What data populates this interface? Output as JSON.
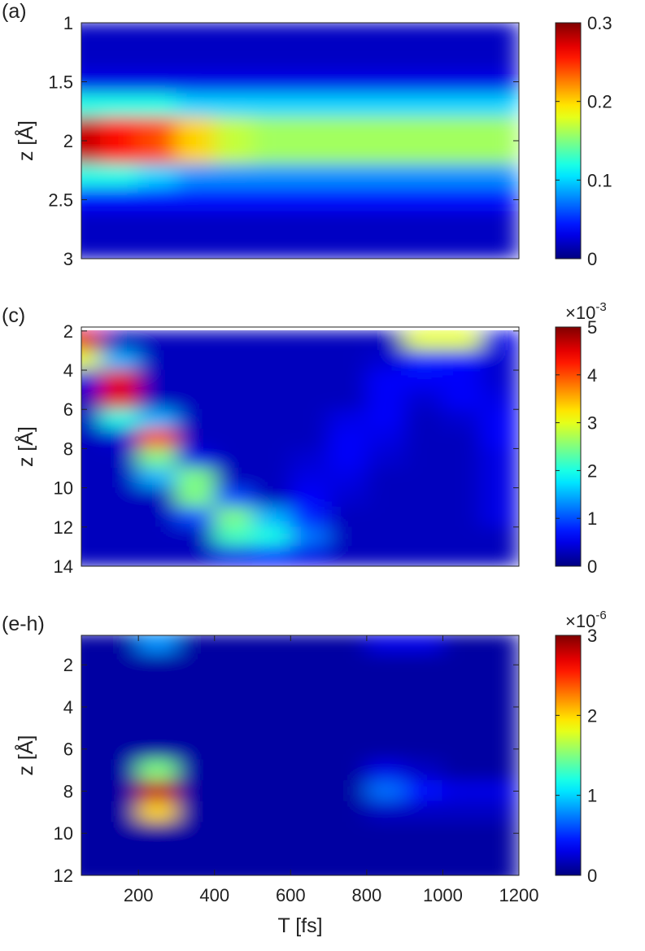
{
  "chart_data": [
    {
      "type": "heatmap",
      "title": "(a)",
      "ylabel": "z [Å]",
      "yreverse": true,
      "xlim": [
        50,
        1200
      ],
      "ylim": [
        1,
        3
      ],
      "yticks": [
        1,
        1.5,
        2,
        2.5,
        3
      ],
      "x": [
        50,
        150,
        250,
        350,
        450,
        550,
        650,
        750,
        850,
        950,
        1050,
        1150
      ],
      "y": [
        1.1,
        1.3,
        1.5,
        1.7,
        1.9,
        2.1,
        2.3,
        2.5,
        2.7,
        2.9
      ],
      "z": [
        [
          0.02,
          0.02,
          0.02,
          0.02,
          0.02,
          0.02,
          0.02,
          0.02,
          0.02,
          0.02,
          0.02,
          0.02
        ],
        [
          0.02,
          0.02,
          0.02,
          0.02,
          0.02,
          0.02,
          0.02,
          0.02,
          0.02,
          0.02,
          0.02,
          0.02
        ],
        [
          0.03,
          0.03,
          0.03,
          0.03,
          0.03,
          0.03,
          0.03,
          0.03,
          0.03,
          0.03,
          0.03,
          0.03
        ],
        [
          0.12,
          0.12,
          0.12,
          0.1,
          0.1,
          0.1,
          0.1,
          0.1,
          0.1,
          0.1,
          0.1,
          0.1
        ],
        [
          0.28,
          0.26,
          0.24,
          0.2,
          0.17,
          0.16,
          0.16,
          0.16,
          0.16,
          0.16,
          0.16,
          0.16
        ],
        [
          0.28,
          0.26,
          0.24,
          0.2,
          0.17,
          0.16,
          0.16,
          0.16,
          0.16,
          0.16,
          0.16,
          0.16
        ],
        [
          0.12,
          0.12,
          0.1,
          0.08,
          0.08,
          0.08,
          0.08,
          0.08,
          0.08,
          0.08,
          0.08,
          0.08
        ],
        [
          0.04,
          0.04,
          0.04,
          0.04,
          0.04,
          0.04,
          0.04,
          0.04,
          0.04,
          0.04,
          0.04,
          0.04
        ],
        [
          0.02,
          0.02,
          0.02,
          0.02,
          0.02,
          0.02,
          0.02,
          0.02,
          0.02,
          0.02,
          0.02,
          0.02
        ],
        [
          0.02,
          0.02,
          0.02,
          0.02,
          0.02,
          0.02,
          0.02,
          0.02,
          0.02,
          0.02,
          0.02,
          0.02
        ]
      ],
      "colorbar": {
        "colormap": "jet",
        "lim": [
          0,
          0.3
        ],
        "ticks": [
          0,
          0.1,
          0.2,
          0.3
        ]
      }
    },
    {
      "type": "heatmap",
      "title": "(c)",
      "ylabel": "z [Å]",
      "yreverse": true,
      "xlim": [
        50,
        1200
      ],
      "ylim": [
        1.8,
        14
      ],
      "yticks": [
        2,
        4,
        6,
        8,
        10,
        12,
        14
      ],
      "x": [
        50,
        150,
        250,
        350,
        450,
        550,
        650,
        750,
        850,
        950,
        1050,
        1150
      ],
      "y": [
        2.5,
        3.5,
        4.5,
        5.5,
        6.5,
        7.5,
        8.5,
        9.5,
        10.5,
        11.5,
        12.5,
        13.5
      ],
      "z": [
        [
          4.5,
          0.3,
          0.3,
          0.3,
          0.3,
          0.3,
          0.3,
          0.3,
          0.3,
          3,
          3,
          0.5
        ],
        [
          3,
          1.5,
          0.3,
          0.3,
          0.3,
          0.3,
          0.3,
          0.3,
          0.4,
          0.8,
          0.7,
          0.4
        ],
        [
          0.5,
          4.5,
          0.3,
          0.3,
          0.3,
          0.3,
          0.3,
          0.3,
          0.6,
          0.6,
          0.6,
          0.4
        ],
        [
          0.3,
          4.5,
          0.3,
          0.3,
          0.3,
          0.3,
          0.3,
          0.3,
          0.6,
          0.4,
          0.6,
          0.5
        ],
        [
          0.3,
          2,
          1.5,
          0.3,
          0.3,
          0.3,
          0.3,
          0.5,
          0.6,
          0.3,
          0.4,
          0.6
        ],
        [
          0.3,
          0.4,
          4,
          0.3,
          0.3,
          0.3,
          0.3,
          0.6,
          0.5,
          0.3,
          0.3,
          0.6
        ],
        [
          0.3,
          0.3,
          2.5,
          0.5,
          0.3,
          0.3,
          0.4,
          0.6,
          0.4,
          0.3,
          0.3,
          0.5
        ],
        [
          0.3,
          0.3,
          1.5,
          2.5,
          0.3,
          0.3,
          0.5,
          0.5,
          0.3,
          0.3,
          0.3,
          0.5
        ],
        [
          0.3,
          0.3,
          0.3,
          2.5,
          1,
          0.3,
          0.6,
          0.4,
          0.3,
          0.3,
          0.3,
          0.5
        ],
        [
          0.3,
          0.3,
          0.3,
          1,
          2.5,
          1.5,
          0.8,
          0.3,
          0.3,
          0.3,
          0.3,
          0.5
        ],
        [
          0.3,
          0.3,
          0.3,
          0.3,
          2.2,
          2,
          1.2,
          0.3,
          0.3,
          0.3,
          0.3,
          0.3
        ],
        [
          0.3,
          0.3,
          0.3,
          0.3,
          0.5,
          0.7,
          0.5,
          0.3,
          0.3,
          0.3,
          0.3,
          0.3
        ]
      ],
      "colorbar": {
        "colormap": "jet",
        "lim": [
          0,
          5
        ],
        "ticks": [
          0,
          1,
          2,
          3,
          4,
          5
        ],
        "scale": {
          "base": "×10",
          "exponent": "-3"
        }
      }
    },
    {
      "type": "heatmap",
      "title": "(e-h)",
      "ylabel": "z [Å]",
      "xlabel": "T [fs]",
      "yreverse": true,
      "xlim": [
        50,
        1200
      ],
      "ylim": [
        0.6,
        12
      ],
      "xticks": [
        200,
        400,
        600,
        800,
        1000,
        1200
      ],
      "yticks": [
        2,
        4,
        6,
        8,
        10,
        12
      ],
      "x": [
        50,
        150,
        250,
        350,
        450,
        550,
        650,
        750,
        850,
        950,
        1050,
        1150
      ],
      "y": [
        1,
        2,
        3,
        4,
        5,
        6,
        7,
        8,
        9,
        10,
        11,
        12
      ],
      "z": [
        [
          0.1,
          0.1,
          0.8,
          0.1,
          0.1,
          0.1,
          0.1,
          0.1,
          0.3,
          0.3,
          0.1,
          0.1
        ],
        [
          0.1,
          0.1,
          0.1,
          0.1,
          0.1,
          0.1,
          0.1,
          0.1,
          0.1,
          0.1,
          0.1,
          0.1
        ],
        [
          0.1,
          0.1,
          0.1,
          0.1,
          0.1,
          0.1,
          0.1,
          0.1,
          0.1,
          0.1,
          0.1,
          0.1
        ],
        [
          0.1,
          0.1,
          0.1,
          0.1,
          0.1,
          0.1,
          0.1,
          0.1,
          0.1,
          0.1,
          0.1,
          0.1
        ],
        [
          0.1,
          0.1,
          0.1,
          0.1,
          0.1,
          0.1,
          0.1,
          0.1,
          0.1,
          0.1,
          0.1,
          0.1
        ],
        [
          0.1,
          0.1,
          0.1,
          0.1,
          0.1,
          0.1,
          0.1,
          0.1,
          0.1,
          0.1,
          0.1,
          0.1
        ],
        [
          0.1,
          0.1,
          1.5,
          0.1,
          0.1,
          0.1,
          0.1,
          0.1,
          0.3,
          0.2,
          0.1,
          0.1
        ],
        [
          0.1,
          0.1,
          2.8,
          0.1,
          0.1,
          0.1,
          0.1,
          0.1,
          0.7,
          0.4,
          0.3,
          0.3
        ],
        [
          0.1,
          0.1,
          2,
          0.1,
          0.1,
          0.1,
          0.1,
          0.1,
          0.2,
          0.2,
          0.2,
          0.2
        ],
        [
          0.1,
          0.1,
          0.1,
          0.1,
          0.1,
          0.1,
          0.1,
          0.1,
          0.1,
          0.1,
          0.1,
          0.1
        ],
        [
          0.1,
          0.1,
          0.1,
          0.1,
          0.1,
          0.1,
          0.1,
          0.1,
          0.1,
          0.1,
          0.1,
          0.1
        ],
        [
          0.1,
          0.1,
          0.1,
          0.1,
          0.1,
          0.1,
          0.1,
          0.1,
          0.1,
          0.1,
          0.1,
          0.1
        ]
      ],
      "colorbar": {
        "colormap": "jet",
        "lim": [
          0,
          3
        ],
        "ticks": [
          0,
          1,
          2,
          3
        ],
        "scale": {
          "base": "×10",
          "exponent": "-6"
        }
      }
    }
  ]
}
